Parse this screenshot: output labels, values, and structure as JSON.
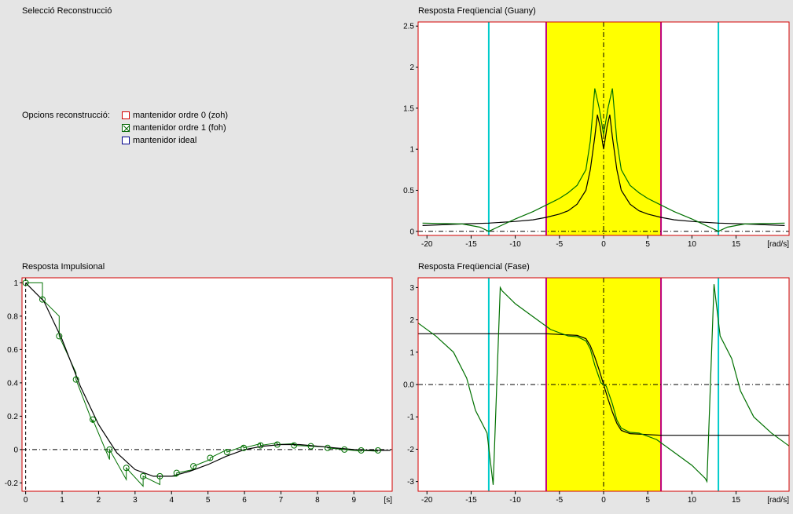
{
  "panels": {
    "selection": {
      "title": "Selecció Reconstrucció"
    },
    "options": {
      "label": "Opcions reconstrucció:",
      "items": [
        {
          "label": "mantenidor ordre 0 (zoh)",
          "checked": false,
          "color": "#d40000"
        },
        {
          "label": "mantenidor ordre 1 (foh)",
          "checked": true,
          "color": "#006400"
        },
        {
          "label": "mantenidor ideal",
          "checked": false,
          "color": "#00008b"
        }
      ]
    }
  },
  "colors": {
    "frame": "#d40000",
    "passband": "#ffff00",
    "cutoff": "#c00080",
    "sampling": "#00cccc",
    "series_black": "#000000",
    "series_green": "#007000"
  },
  "chart_data": [
    {
      "type": "line",
      "title": "Resposta Freqüencial (Guany)",
      "xunit": "[rad/s]",
      "xlim": [
        -21,
        21
      ],
      "ylim": [
        -0.05,
        2.55
      ],
      "xticks": [
        -20,
        -15,
        -10,
        -5,
        0,
        5,
        10,
        15
      ],
      "yticks": [
        0,
        0.5,
        1,
        1.5,
        2,
        2.5
      ],
      "yticklabels": [
        "0",
        "0.5",
        "1",
        "1.5",
        "2",
        "2.5"
      ],
      "band": [
        -6.5,
        6.5
      ],
      "vlines_sampling": [
        -13,
        13
      ],
      "zero_hline": 0,
      "zero_vline": 0,
      "series": [
        {
          "color": "#000000",
          "x": [
            -20.5,
            -16,
            -13,
            -10,
            -8,
            -6.5,
            -5,
            -4,
            -3,
            -2,
            -1.5,
            -1,
            -0.7,
            -0.4,
            0,
            0.4,
            0.7,
            1,
            1.5,
            2,
            3,
            4,
            5,
            6.5,
            8,
            10,
            13,
            16,
            20.5
          ],
          "y": [
            0.07,
            0.09,
            0.1,
            0.12,
            0.14,
            0.17,
            0.21,
            0.25,
            0.33,
            0.5,
            0.75,
            1.15,
            1.42,
            1.28,
            1.0,
            1.28,
            1.42,
            1.15,
            0.75,
            0.5,
            0.33,
            0.25,
            0.21,
            0.17,
            0.14,
            0.12,
            0.1,
            0.09,
            0.07
          ]
        },
        {
          "color": "#007000",
          "x": [
            -20.5,
            -16,
            -14,
            -13,
            -12,
            -10,
            -8,
            -6.5,
            -5,
            -4,
            -3,
            -2,
            -1.5,
            -1,
            -0.5,
            0,
            0.5,
            1,
            1.5,
            2,
            3,
            4,
            5,
            6.5,
            8,
            10,
            12,
            13,
            14,
            16,
            20.5
          ],
          "y": [
            0.1,
            0.09,
            0.05,
            0.0,
            0.05,
            0.15,
            0.24,
            0.32,
            0.4,
            0.47,
            0.56,
            0.75,
            1.1,
            1.74,
            1.5,
            1.18,
            1.5,
            1.74,
            1.1,
            0.75,
            0.56,
            0.47,
            0.4,
            0.32,
            0.24,
            0.15,
            0.05,
            0.0,
            0.05,
            0.09,
            0.1
          ]
        }
      ]
    },
    {
      "type": "line",
      "title": "Resposta Impulsional",
      "xunit": "[s]",
      "xlim": [
        -0.1,
        10.05
      ],
      "ylim": [
        -0.25,
        1.03
      ],
      "xticks": [
        0,
        1,
        2,
        3,
        4,
        5,
        6,
        7,
        8,
        9
      ],
      "yticks": [
        1,
        0.8,
        0.6,
        0.4,
        0.2,
        0,
        -0.2
      ],
      "yticklabels": [
        "1",
        "0.8",
        "0.6",
        "0.4",
        "0.2",
        "0",
        "-0.2"
      ],
      "zero_hline": 0,
      "samples_x": [
        0,
        0.46,
        0.92,
        1.38,
        1.84,
        2.3,
        2.76,
        3.22,
        3.68,
        4.14,
        4.6,
        5.06,
        5.52,
        5.98,
        6.44,
        6.9,
        7.36,
        7.82,
        8.28,
        8.74,
        9.2,
        9.66
      ],
      "samples_y": [
        1.0,
        0.9,
        0.68,
        0.42,
        0.18,
        0.0,
        -0.11,
        -0.16,
        -0.16,
        -0.14,
        -0.1,
        -0.05,
        -0.015,
        0.01,
        0.025,
        0.03,
        0.025,
        0.02,
        0.01,
        0.0,
        -0.005,
        -0.005
      ],
      "series": [
        {
          "color": "#000000",
          "x": [
            0,
            0.5,
            1,
            1.5,
            2,
            2.5,
            3,
            3.5,
            4,
            4.5,
            5,
            5.5,
            6,
            6.5,
            7,
            7.5,
            8,
            8.5,
            9,
            9.5,
            10
          ],
          "y": [
            1.0,
            0.89,
            0.66,
            0.38,
            0.15,
            -0.02,
            -0.12,
            -0.16,
            -0.16,
            -0.13,
            -0.09,
            -0.04,
            0.0,
            0.02,
            0.03,
            0.03,
            0.02,
            0.01,
            0.0,
            -0.005,
            -0.005
          ]
        }
      ]
    },
    {
      "type": "line",
      "title": "Resposta Freqüencial (Fase)",
      "xunit": "[rad/s]",
      "xlim": [
        -21,
        21
      ],
      "ylim": [
        -3.3,
        3.3
      ],
      "xticks": [
        -20,
        -15,
        -10,
        -5,
        0,
        5,
        10,
        15
      ],
      "yticks": [
        3,
        2,
        1,
        0,
        -1,
        -2,
        -3
      ],
      "yticklabels": [
        "3",
        "2",
        "1",
        "0.0",
        "-1",
        "-2",
        "-3"
      ],
      "band": [
        -6.5,
        6.5
      ],
      "vlines_sampling": [
        -13,
        13
      ],
      "zero_hline": 0,
      "zero_vline": 0,
      "series": [
        {
          "color": "#000000",
          "x": [
            -21,
            -6.5,
            -3,
            -2,
            -1.5,
            -1,
            -0.5,
            0,
            0.5,
            1,
            1.5,
            2,
            3,
            6.5,
            21
          ],
          "y": [
            1.57,
            1.57,
            1.52,
            1.42,
            1.2,
            0.85,
            0.45,
            0,
            -0.45,
            -0.85,
            -1.2,
            -1.42,
            -1.52,
            -1.57,
            -1.57
          ]
        },
        {
          "color": "#007000",
          "x": [
            -21,
            -19,
            -17,
            -15.5,
            -14.5,
            -13.2,
            -12.5,
            -11.7,
            -11.5,
            -10,
            -8,
            -6,
            -4,
            -3,
            -2,
            -1.5,
            -1,
            -0.3,
            0,
            0.3,
            1,
            1.5,
            2,
            3,
            4,
            6,
            8,
            10,
            11.5,
            11.7,
            12.5,
            13.2,
            14.5,
            15.5,
            17,
            19,
            21
          ],
          "y": [
            1.9,
            1.5,
            1.0,
            0.2,
            -0.8,
            -1.5,
            -3.1,
            3.0,
            2.9,
            2.5,
            2.1,
            1.7,
            1.5,
            1.48,
            1.35,
            1.1,
            0.6,
            0.05,
            0,
            -0.05,
            -0.6,
            -1.1,
            -1.35,
            -1.48,
            -1.5,
            -1.7,
            -2.1,
            -2.5,
            -2.9,
            -3.0,
            3.1,
            1.5,
            0.8,
            -0.2,
            -1.0,
            -1.5,
            -1.9
          ]
        }
      ]
    }
  ]
}
